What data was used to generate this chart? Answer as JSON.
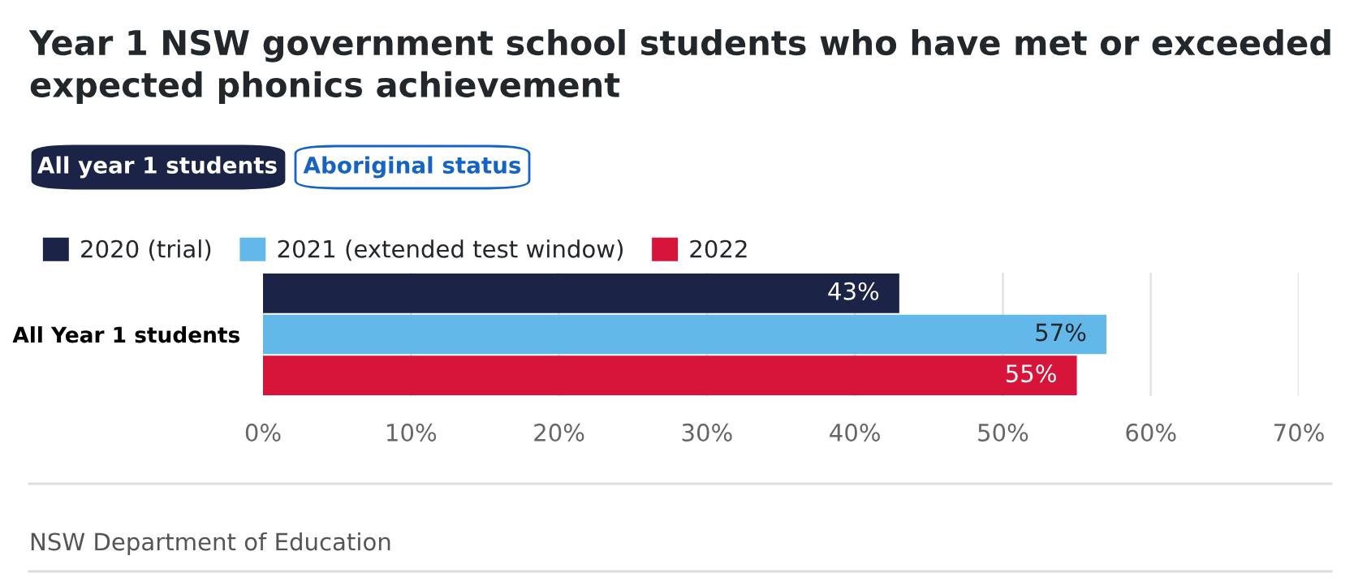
{
  "chart_data": {
    "type": "bar",
    "orientation": "horizontal",
    "title": "Year 1 NSW government school students who have met or exceeded\nexpected phonics achievement",
    "categories": [
      "All Year 1 students"
    ],
    "series": [
      {
        "name": "2020 (trial)",
        "color": "#1b2447",
        "values": [
          43
        ],
        "value_labels": [
          "43%"
        ]
      },
      {
        "name": "2021 (extended test window)",
        "color": "#63b8ea",
        "values": [
          57
        ],
        "value_labels": [
          "57%"
        ]
      },
      {
        "name": "2022",
        "color": "#d7153a",
        "values": [
          55
        ],
        "value_labels": [
          "55%"
        ]
      }
    ],
    "xlim": [
      0,
      70
    ],
    "xticks": [
      {
        "value": 0,
        "label": "0%"
      },
      {
        "value": 10,
        "label": "10%"
      },
      {
        "value": 20,
        "label": "20%"
      },
      {
        "value": 30,
        "label": "30%"
      },
      {
        "value": 40,
        "label": "40%"
      },
      {
        "value": 50,
        "label": "50%"
      },
      {
        "value": 60,
        "label": "60%"
      },
      {
        "value": 70,
        "label": "70%"
      }
    ],
    "grid": "x",
    "legend": "top left",
    "annotations": [
      "All year 1 students",
      "Aboriginal status",
      "NSW Department of Education"
    ]
  }
}
